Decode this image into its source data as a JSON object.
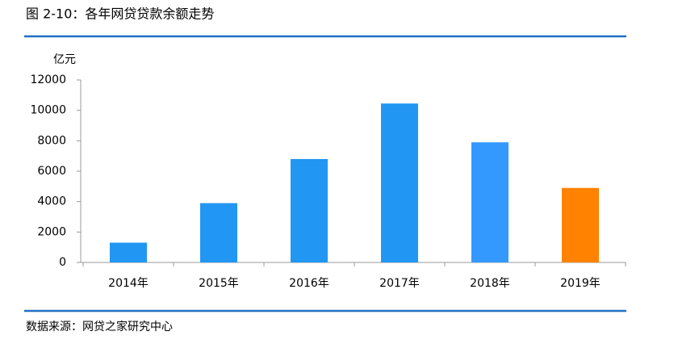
{
  "chart_data": {
    "type": "bar",
    "title": "图 2-10：各年网贷贷款余额走势",
    "y_label": "亿元",
    "source": "数据来源：网贷之家研究中心",
    "categories": [
      "2014年",
      "2015年",
      "2016年",
      "2017年",
      "2018年",
      "2019年"
    ],
    "values": [
      1300,
      3900,
      6800,
      10450,
      7900,
      4900
    ],
    "colors": [
      "#2196f3",
      "#2196f3",
      "#2196f3",
      "#2196f3",
      "#3399ff",
      "#ff8200"
    ],
    "ylim": [
      0,
      12000
    ],
    "yticks": [
      0,
      2000,
      4000,
      6000,
      8000,
      10000,
      12000
    ],
    "grid": false
  }
}
